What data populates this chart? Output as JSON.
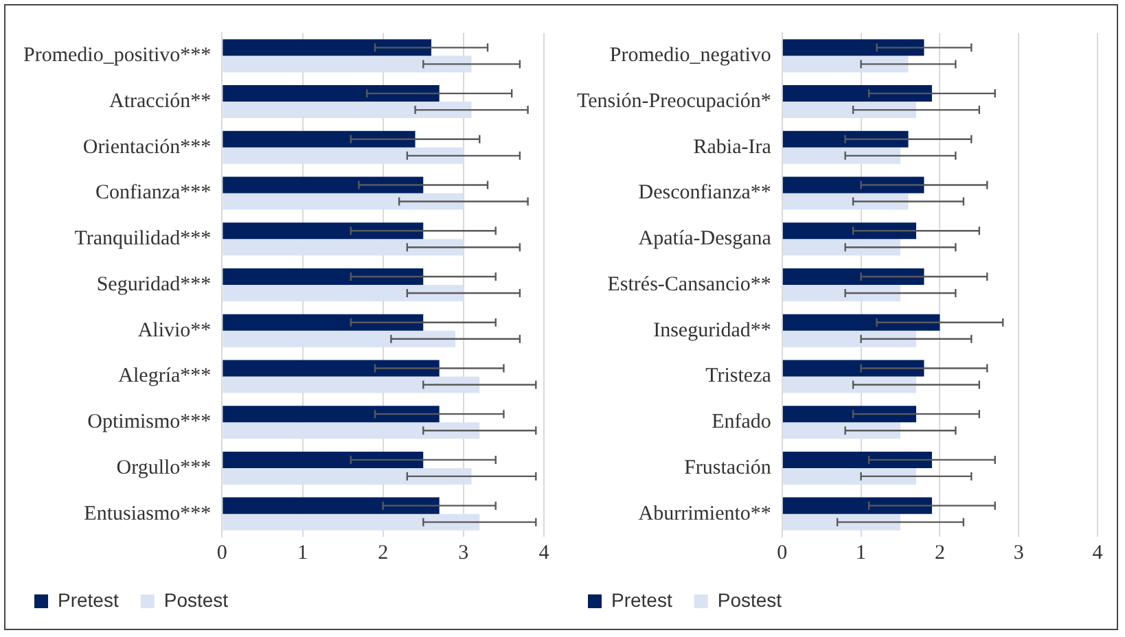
{
  "chart_data": [
    {
      "type": "bar",
      "orientation": "horizontal",
      "categories": [
        "Promedio_positivo***",
        "Atracción**",
        "Orientación***",
        "Confianza***",
        "Tranquilidad***",
        "Seguridad***",
        "Alivio**",
        "Alegría***",
        "Optimismo***",
        "Orgullo***",
        "Entusiasmo***"
      ],
      "series": [
        {
          "name": "Pretest",
          "color": "#002060",
          "values": [
            2.6,
            2.7,
            2.4,
            2.5,
            2.5,
            2.5,
            2.5,
            2.7,
            2.7,
            2.5,
            2.7
          ],
          "errors": [
            0.7,
            0.9,
            0.8,
            0.8,
            0.9,
            0.9,
            0.9,
            0.8,
            0.8,
            0.9,
            0.7
          ]
        },
        {
          "name": "Postest",
          "color": "#dae3f3",
          "values": [
            3.1,
            3.1,
            3.0,
            3.0,
            3.0,
            3.0,
            2.9,
            3.2,
            3.2,
            3.1,
            3.2
          ],
          "errors": [
            0.6,
            0.7,
            0.7,
            0.8,
            0.7,
            0.7,
            0.8,
            0.7,
            0.7,
            0.8,
            0.7
          ]
        }
      ],
      "xlim": [
        0,
        4
      ],
      "xticks": [
        0,
        1,
        2,
        3,
        4
      ],
      "grid": "x",
      "legend": "bottom"
    },
    {
      "type": "bar",
      "orientation": "horizontal",
      "categories": [
        "Promedio_negativo",
        "Tensión-Preocupación*",
        "Rabia-Ira",
        "Desconfianza**",
        "Apatía-Desgana",
        "Estrés-Cansancio**",
        "Inseguridad**",
        "Tristeza",
        "Enfado",
        "Frustación",
        "Aburrimiento**"
      ],
      "series": [
        {
          "name": "Pretest",
          "color": "#002060",
          "values": [
            1.8,
            1.9,
            1.6,
            1.8,
            1.7,
            1.8,
            2.0,
            1.8,
            1.7,
            1.9,
            1.9
          ],
          "errors": [
            0.6,
            0.8,
            0.8,
            0.8,
            0.8,
            0.8,
            0.8,
            0.8,
            0.8,
            0.8,
            0.8
          ]
        },
        {
          "name": "Postest",
          "color": "#dae3f3",
          "values": [
            1.6,
            1.7,
            1.5,
            1.6,
            1.5,
            1.5,
            1.7,
            1.7,
            1.5,
            1.7,
            1.5
          ],
          "errors": [
            0.6,
            0.8,
            0.7,
            0.7,
            0.7,
            0.7,
            0.7,
            0.8,
            0.7,
            0.7,
            0.8
          ]
        }
      ],
      "xlim": [
        0,
        4
      ],
      "xticks": [
        0,
        1,
        2,
        3,
        4
      ],
      "grid": "x",
      "legend": "bottom"
    }
  ]
}
